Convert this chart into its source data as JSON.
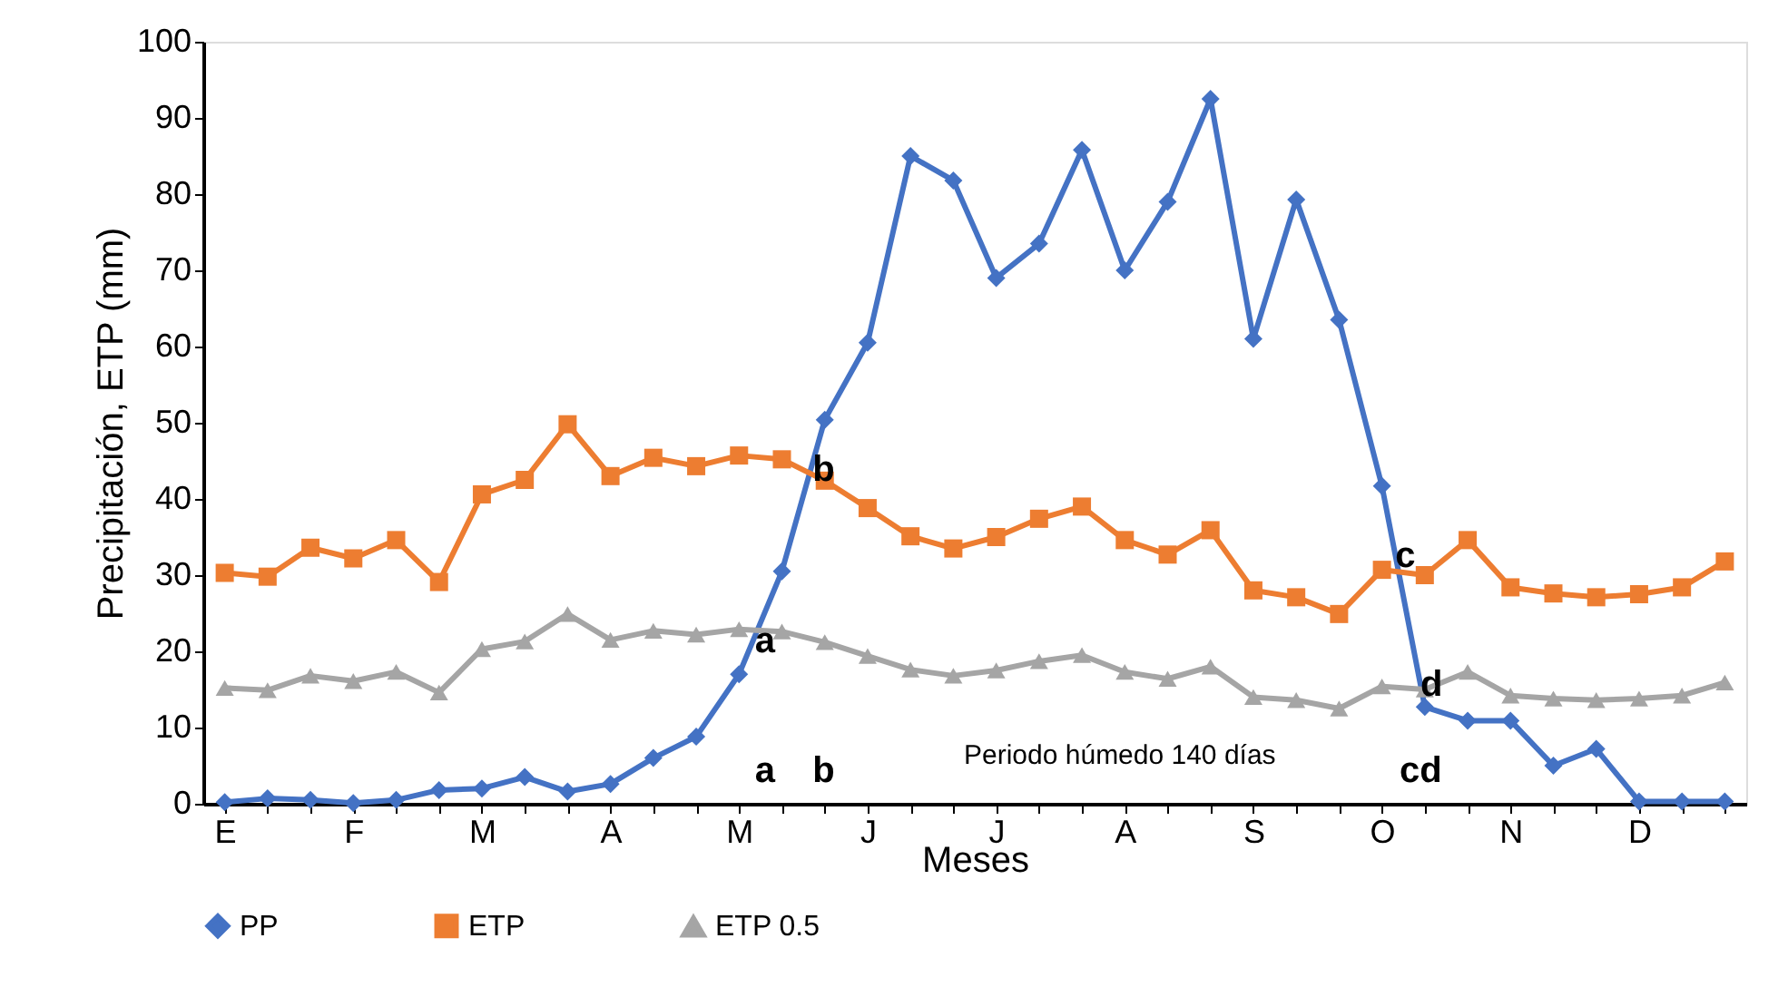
{
  "chart_data": {
    "type": "line",
    "xlabel": "Meses",
    "ylabel": "Precipitación, ETP (mm)",
    "categories": [
      "E",
      null,
      null,
      "F",
      null,
      null,
      "M",
      null,
      null,
      "A",
      null,
      null,
      "M",
      null,
      null,
      "J",
      null,
      null,
      "J",
      null,
      null,
      "A",
      null,
      null,
      "S",
      null,
      null,
      "O",
      null,
      null,
      "N",
      null,
      null,
      "D",
      null,
      null
    ],
    "ylim": [
      0,
      100
    ],
    "yticks": [
      0,
      10,
      20,
      30,
      40,
      50,
      60,
      70,
      80,
      90,
      100
    ],
    "series": [
      {
        "name": "PP",
        "color": "#4472c4",
        "marker": "diamond",
        "values": [
          0.2,
          0.7,
          0.5,
          0.1,
          0.5,
          1.8,
          2,
          3.5,
          1.6,
          2.6,
          6,
          8.8,
          17,
          30.5,
          50.4,
          60.5,
          85,
          81.8,
          69,
          73.5,
          85.8,
          70,
          79,
          92.5,
          61,
          79.3,
          63.5,
          41.7,
          12.7,
          10.9,
          10.9,
          5,
          7.2,
          0.3,
          0.3,
          0.3
        ]
      },
      {
        "name": "ETP",
        "color": "#ed7d31",
        "marker": "square",
        "values": [
          30.3,
          29.8,
          33.6,
          32.2,
          34.6,
          29.1,
          40.6,
          42.5,
          49.8,
          43,
          45.4,
          44.3,
          45.7,
          45.2,
          42.4,
          38.8,
          35.1,
          33.5,
          35,
          37.4,
          39,
          34.6,
          32.7,
          35.9,
          28,
          27.1,
          24.9,
          30.7,
          30,
          34.6,
          28.4,
          27.6,
          27.1,
          27.5,
          28.4,
          31.8
        ]
      },
      {
        "name": "ETP 0.5",
        "color": "#a5a5a5",
        "marker": "triangle",
        "values": [
          15.2,
          14.9,
          16.8,
          16.1,
          17.3,
          14.6,
          20.3,
          21.3,
          24.9,
          21.5,
          22.7,
          22.2,
          22.9,
          22.6,
          21.2,
          19.4,
          17.6,
          16.8,
          17.5,
          18.7,
          19.5,
          17.3,
          16.4,
          18,
          14,
          13.6,
          12.5,
          15.4,
          15,
          17.3,
          14.2,
          13.8,
          13.6,
          13.8,
          14.2,
          15.9
        ]
      }
    ],
    "annotations": [
      "a",
      "b",
      "c",
      "d",
      "a",
      "b",
      "cd",
      "Periodo húmedo 140 días"
    ],
    "legend": "bottom",
    "grid": false,
    "line_style": "solid"
  }
}
